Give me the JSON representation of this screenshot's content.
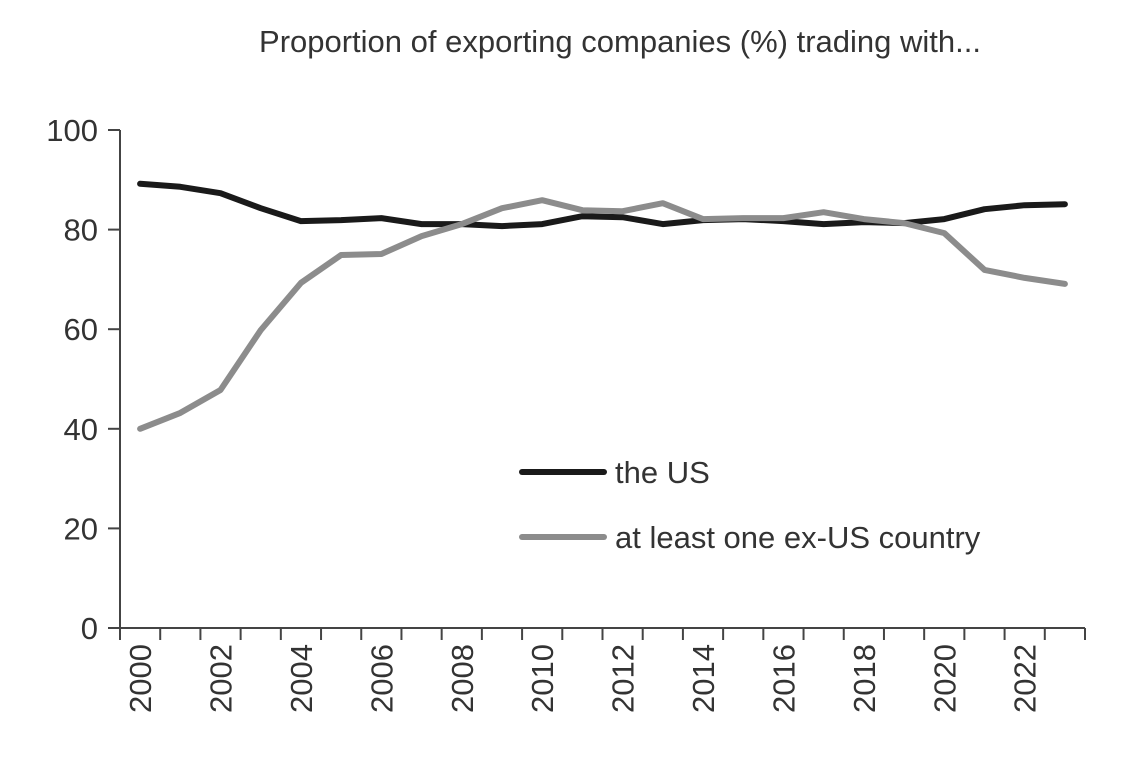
{
  "chart_data": {
    "type": "line",
    "title": "Proportion of exporting companies (%) trading with...",
    "xlabel": "",
    "ylabel": "",
    "ylim": [
      0,
      100
    ],
    "yticks": [
      0,
      20,
      40,
      60,
      80,
      100
    ],
    "xticks": [
      2000,
      2002,
      2004,
      2006,
      2008,
      2010,
      2012,
      2014,
      2016,
      2018,
      2020,
      2022
    ],
    "x": [
      2000,
      2001,
      2002,
      2003,
      2004,
      2005,
      2006,
      2007,
      2008,
      2009,
      2010,
      2011,
      2012,
      2013,
      2014,
      2015,
      2016,
      2017,
      2018,
      2019,
      2020,
      2021,
      2022,
      2023
    ],
    "grid": false,
    "legend_position": "center-right",
    "series": [
      {
        "name": "the US",
        "color": "#1a1a1a",
        "values": [
          89.2,
          88.6,
          87.3,
          84.3,
          81.7,
          81.9,
          82.3,
          81.1,
          81.1,
          80.7,
          81.1,
          82.7,
          82.5,
          81.1,
          81.9,
          82.1,
          81.7,
          81.1,
          81.5,
          81.3,
          82.1,
          84.1,
          84.9,
          85.1
        ]
      },
      {
        "name": "at least one ex-US country",
        "color": "#8c8c8c",
        "values": [
          40.0,
          43.2,
          47.8,
          59.8,
          69.3,
          74.9,
          75.1,
          78.7,
          81.1,
          84.3,
          85.9,
          83.9,
          83.7,
          85.3,
          82.1,
          82.3,
          82.3,
          83.5,
          82.1,
          81.3,
          79.3,
          71.9,
          70.3,
          69.1
        ]
      }
    ]
  }
}
